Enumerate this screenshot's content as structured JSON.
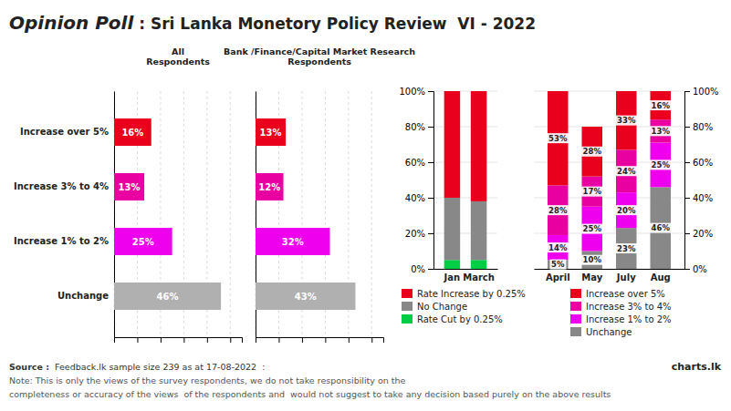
{
  "chart_data": [
    {
      "type": "bar",
      "orientation": "horizontal",
      "title": "All\nRespondents",
      "categories": [
        "Increase over 5%",
        "Increase 3% to 4%",
        "Increase 1% to 2%",
        "Unchange"
      ],
      "values": [
        16,
        13,
        25,
        46
      ],
      "value_labels": [
        "16%",
        "13%",
        "25%",
        "46%"
      ],
      "colors": [
        "#e8001c",
        "#e800a0",
        "#ee00ee",
        "#b0b0b0"
      ],
      "xlim": [
        0,
        55
      ],
      "xticks": [
        0,
        10,
        20,
        30,
        40,
        50
      ],
      "grid": true,
      "tick_labels": "y",
      "data_labels": true,
      "annotations": [
        "Opinion Poll",
        " : Sri Lanka Monetory Policy Review  VI - 2022",
        "Source :",
        "Feedback.lk sample size 239 as at 17-08-2022  : ",
        "Note: This is only the views of the survey respondents, we do not take responsibility on the",
        "completeness or accuracy of the views  of the respondents and  would not suggest to take any decision based purely on the above results",
        "charts.lk"
      ]
    },
    {
      "type": "bar",
      "orientation": "horizontal",
      "title": "Bank /Finance/Capital Market Research\nRespondents",
      "categories": [
        null,
        null,
        null,
        null
      ],
      "values": [
        13,
        12,
        32,
        43
      ],
      "value_labels": [
        "13%",
        "12%",
        "32%",
        "43%"
      ],
      "colors": [
        "#e8001c",
        "#e800a0",
        "#ee00ee",
        "#b0b0b0"
      ],
      "xlim": [
        0,
        55
      ],
      "xticks": [
        0,
        10,
        20,
        30,
        40,
        50
      ],
      "grid": true,
      "tick_labels": false,
      "data_labels": true
    },
    {
      "type": "bar",
      "stacked": true,
      "categories": [
        "Jan",
        "March"
      ],
      "series": [
        {
          "name": "Rate Cut by 0.25%",
          "color": "#00cc44",
          "values": [
            5,
            5
          ]
        },
        {
          "name": "No Change",
          "color": "#888888",
          "values": [
            35,
            33
          ]
        },
        {
          "name": "Rate Increase by 0.25%",
          "color": "#e8001c",
          "values": [
            60,
            62
          ]
        }
      ],
      "ylim": [
        0,
        100
      ],
      "yticks": [
        {
          "value": 0,
          "label": "0%"
        },
        {
          "value": 20,
          "label": "20%"
        },
        {
          "value": 40,
          "label": "40%"
        },
        {
          "value": 60,
          "label": "60%"
        },
        {
          "value": 80,
          "label": "80%"
        },
        {
          "value": 100,
          "label": "100%"
        }
      ],
      "grid": true,
      "legend": "bottom"
    },
    {
      "type": "bar",
      "stacked": true,
      "categories": [
        "April",
        "May",
        "July",
        "Aug"
      ],
      "series": [
        {
          "name": "Unchange",
          "color": "#888888",
          "values": [
            5,
            10,
            23,
            46
          ],
          "value_labels": [
            "5%",
            "10%",
            "23%",
            "46%"
          ]
        },
        {
          "name": "Increase 1% to 2%",
          "color": "#ee00ee",
          "values": [
            14,
            25,
            20,
            25
          ],
          "value_labels": [
            "14%",
            "25%",
            "20%",
            "25%"
          ]
        },
        {
          "name": "Increase 3% to 4%",
          "color": "#e800a0",
          "values": [
            28,
            17,
            24,
            13
          ],
          "value_labels": [
            "28%",
            "17%",
            "24%",
            "13%"
          ]
        },
        {
          "name": "Increase over 5%",
          "color": "#e8001c",
          "values": [
            53,
            28,
            33,
            16
          ],
          "value_labels": [
            "53%",
            "28%",
            "33%",
            "16%"
          ]
        }
      ],
      "ylim": [
        0,
        100
      ],
      "yticks": [
        {
          "value": 0,
          "label": "0%"
        },
        {
          "value": 20,
          "label": "20%"
        },
        {
          "value": 40,
          "label": "40%"
        },
        {
          "value": 60,
          "label": "60%"
        },
        {
          "value": 80,
          "label": "80%"
        },
        {
          "value": 100,
          "label": "100%"
        }
      ],
      "grid": true,
      "legend": "bottom",
      "data_labels": true
    }
  ]
}
